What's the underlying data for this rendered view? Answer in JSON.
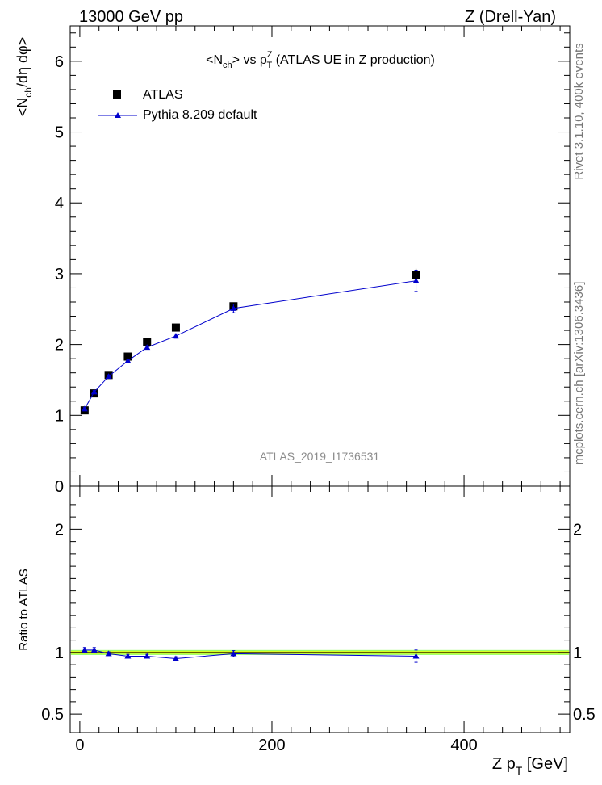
{
  "header": {
    "left": "13000 GeV pp",
    "right": "Z (Drell-Yan)"
  },
  "side_labels": {
    "upper": "Rivet 3.1.10,  400k events",
    "lower": "mcplots.cern.ch [arXiv:1306.3436]"
  },
  "colors": {
    "atlas": "#000000",
    "pythia": "#0000cc",
    "band_inner": "#ffff00",
    "band_outer": "#99ff66",
    "watermark": "#8c8c8c"
  },
  "chart_data": [
    {
      "type": "scatter",
      "title": {
        "base": "<N",
        "sub1": "ch",
        "mid": "> vs p",
        "sup": "Z",
        "sub2": "T",
        "tail": " (ATLAS UE in Z production)"
      },
      "ylabel": {
        "a": "<N",
        "sub": "ch",
        "b": "/dη dφ>"
      },
      "watermark": "ATLAS_2019_I1736531",
      "xlim": [
        -10,
        510
      ],
      "ylim": [
        0,
        6.5
      ],
      "yticks": [
        0,
        1,
        2,
        3,
        4,
        5,
        6
      ],
      "ytick_labels": [
        "0",
        "1",
        "2",
        "3",
        "4",
        "5",
        "6"
      ],
      "grid": false,
      "legend_position": "top-left",
      "series": [
        {
          "name": "ATLAS",
          "style": "square-markers",
          "x": [
            5,
            15,
            30,
            50,
            70,
            100,
            160,
            350
          ],
          "y": [
            1.07,
            1.31,
            1.57,
            1.83,
            2.03,
            2.24,
            2.54,
            2.98
          ],
          "yerr": [
            0.02,
            0.02,
            0.02,
            0.02,
            0.03,
            0.03,
            0.04,
            0.09
          ]
        },
        {
          "name": "Pythia 8.209 default",
          "style": "line-triangles",
          "x": [
            5,
            15,
            30,
            50,
            70,
            100,
            160,
            350
          ],
          "y": [
            1.09,
            1.33,
            1.55,
            1.77,
            1.96,
            2.12,
            2.51,
            2.9
          ],
          "yerr": [
            0.02,
            0.02,
            0.02,
            0.02,
            0.02,
            0.03,
            0.06,
            0.15
          ]
        }
      ]
    },
    {
      "type": "line",
      "ylabel": "Ratio to ATLAS",
      "xlabel": {
        "a": "Z p",
        "sub": "T",
        "b": " [GeV]"
      },
      "xlim": [
        -10,
        510
      ],
      "ylim": [
        0.35,
        2.35
      ],
      "xticks": [
        0,
        200,
        400
      ],
      "xtick_labels": [
        "0",
        "200",
        "400"
      ],
      "yticks": [
        0.5,
        1,
        2
      ],
      "ytick_labels": [
        "0.5",
        "1",
        "2"
      ],
      "band": {
        "inner": [
          0.99,
          1.01
        ],
        "outer": [
          0.98,
          1.02
        ]
      },
      "series": [
        {
          "name": "Pythia 8.209 default",
          "x": [
            5,
            15,
            30,
            50,
            70,
            100,
            160,
            350
          ],
          "y": [
            1.02,
            1.02,
            0.99,
            0.97,
            0.97,
            0.95,
            0.99,
            0.97
          ],
          "yerr": [
            0.02,
            0.02,
            0.015,
            0.015,
            0.015,
            0.015,
            0.025,
            0.05
          ]
        }
      ]
    }
  ]
}
